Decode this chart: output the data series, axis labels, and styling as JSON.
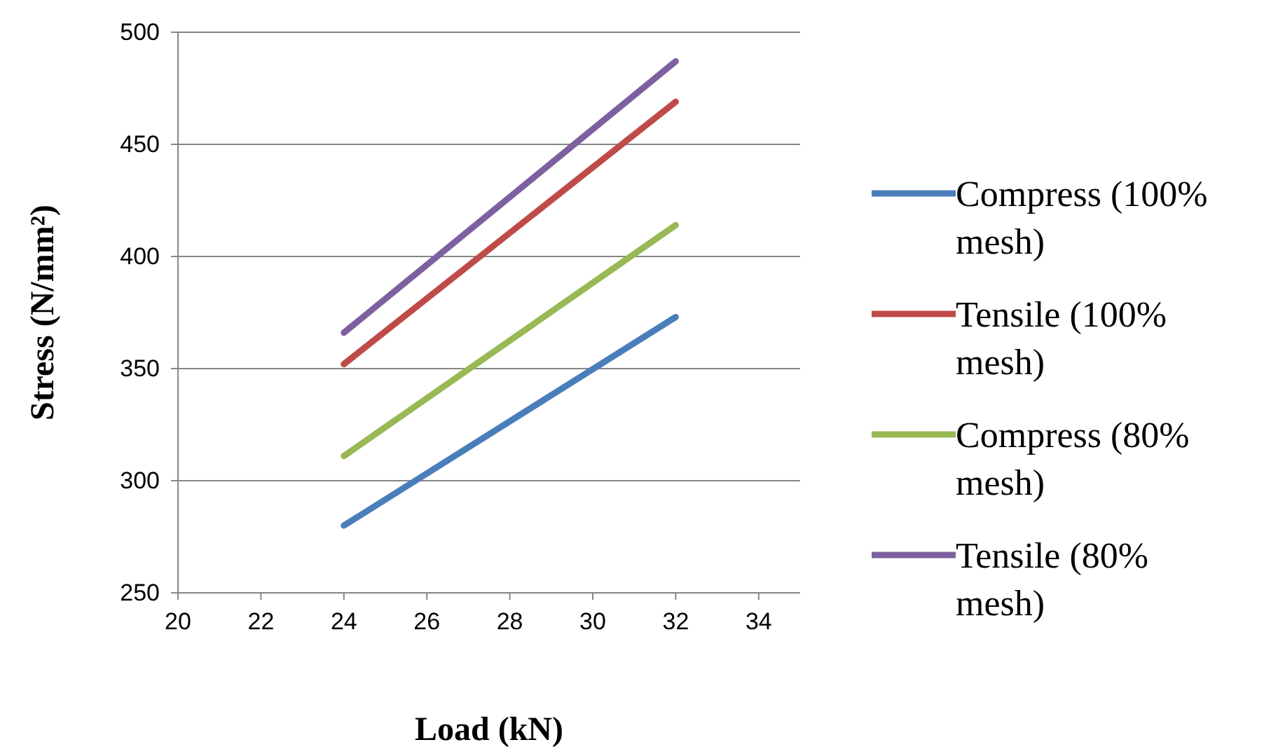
{
  "chart_data": {
    "type": "line",
    "xlabel": "Load (kN)",
    "ylabel": "Stress (N/mm²)",
    "x": [
      24,
      32
    ],
    "xlim": [
      20,
      35
    ],
    "xticks": [
      20,
      22,
      24,
      26,
      28,
      30,
      32,
      34
    ],
    "ylim": [
      250,
      500
    ],
    "yticks": [
      250,
      300,
      350,
      400,
      450,
      500
    ],
    "grid": "y",
    "legend": "right",
    "marker": "none",
    "line_style": "solid",
    "series": [
      {
        "name": "Compress (100% mesh)",
        "color": "#4a7ebb",
        "values": [
          280,
          373
        ]
      },
      {
        "name": "Tensile (100% mesh)",
        "color": "#be4b48",
        "values": [
          352,
          469
        ]
      },
      {
        "name": "Compress (80% mesh)",
        "color": "#98b954",
        "values": [
          311,
          414
        ]
      },
      {
        "name": "Tensile (80% mesh)",
        "color": "#7d60a0",
        "values": [
          366,
          487
        ]
      }
    ]
  }
}
